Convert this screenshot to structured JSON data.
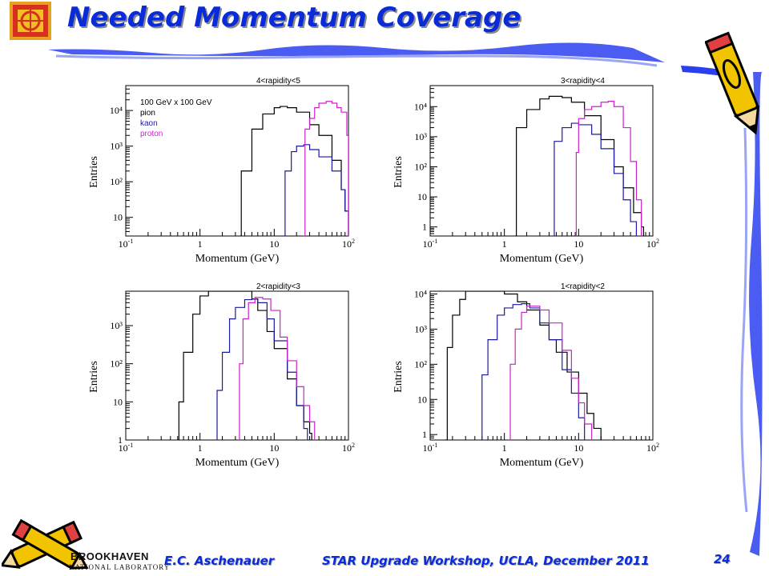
{
  "slide": {
    "title": "Needed Momentum Coverage",
    "footer_author": "E.C. Aschenauer",
    "footer_event": "STAR Upgrade Workshop, UCLA, December 2011",
    "page_number": "24",
    "lab_name": "BROOKHAVEN",
    "lab_subtitle": "NATIONAL LABORATORY"
  },
  "colors": {
    "title": "#0a2bd8",
    "pion": "#000000",
    "kaon": "#1a1aa0",
    "proton": "#cc22cc",
    "frame": "#000000"
  },
  "legend": {
    "header": "100 GeV x 100 GeV",
    "entries": [
      "pion",
      "kaon",
      "proton"
    ]
  },
  "chart_data": [
    {
      "type": "line",
      "title": "4<rapidity<5",
      "xlabel": "Momentum (GeV)",
      "ylabel": "Entries",
      "xscale": "log",
      "yscale": "log",
      "xlim": [
        0.1,
        100
      ],
      "ylim": [
        3,
        50000
      ],
      "ytick_labels": [
        "10",
        "10²",
        "10³",
        "10⁴"
      ],
      "legend_in_plot": true,
      "series": [
        {
          "name": "pion",
          "x": [
            3.5,
            3.6,
            5,
            7,
            10,
            12,
            15,
            20,
            30,
            40,
            60,
            80,
            90,
            100
          ],
          "y": [
            3,
            200,
            3000,
            8000,
            12000,
            13000,
            12000,
            9000,
            4000,
            2000,
            400,
            60,
            15,
            3
          ]
        },
        {
          "name": "kaon",
          "x": [
            13,
            14,
            17,
            20,
            25,
            30,
            40,
            60,
            80,
            90,
            100
          ],
          "y": [
            3,
            200,
            700,
            1000,
            1100,
            800,
            500,
            200,
            60,
            15,
            3
          ]
        },
        {
          "name": "proton",
          "x": [
            25,
            26,
            30,
            35,
            40,
            50,
            60,
            70,
            80,
            95,
            100
          ],
          "y": [
            3,
            3000,
            6000,
            12000,
            16000,
            18000,
            16000,
            12000,
            9000,
            2000,
            1000
          ]
        }
      ]
    },
    {
      "type": "line",
      "title": "3<rapidity<4",
      "xlabel": "Momentum (GeV)",
      "ylabel": "Entries",
      "xscale": "log",
      "yscale": "log",
      "xlim": [
        0.1,
        100
      ],
      "ylim": [
        0.5,
        50000
      ],
      "ytick_labels": [
        "1",
        "10",
        "10²",
        "10³",
        "10⁴"
      ],
      "legend_in_plot": false,
      "series": [
        {
          "name": "pion",
          "x": [
            1.4,
            1.45,
            2,
            3,
            4,
            5,
            6,
            8,
            12,
            20,
            30,
            40,
            55,
            70,
            75
          ],
          "y": [
            0.5,
            2000,
            8000,
            18000,
            22000,
            22000,
            20000,
            14000,
            5000,
            800,
            100,
            20,
            3,
            1,
            0.5
          ]
        },
        {
          "name": "kaon",
          "x": [
            4.5,
            4.7,
            6,
            8,
            10,
            15,
            20,
            30,
            40,
            50,
            60
          ],
          "y": [
            0.5,
            700,
            2000,
            2800,
            2500,
            1200,
            400,
            60,
            8,
            1.5,
            0.5
          ]
        },
        {
          "name": "proton",
          "x": [
            9,
            9.3,
            10,
            12,
            15,
            20,
            25,
            30,
            40,
            50,
            60,
            70
          ],
          "y": [
            0.5,
            300,
            4000,
            8000,
            10000,
            14000,
            15000,
            10000,
            2000,
            150,
            8,
            0.5
          ]
        }
      ]
    },
    {
      "type": "line",
      "title": "2<rapidity<3",
      "xlabel": "Momentum (GeV)",
      "ylabel": "Entries",
      "xscale": "log",
      "yscale": "log",
      "xlim": [
        0.1,
        100
      ],
      "ylim": [
        1,
        8000
      ],
      "ytick_labels": [
        "1",
        "10",
        "10²",
        "10³"
      ],
      "legend_in_plot": false,
      "series": [
        {
          "name": "pion",
          "x": [
            0.5,
            0.52,
            0.6,
            0.8,
            1,
            1.3,
            1.6,
            2,
            3,
            4,
            5,
            6,
            8,
            10,
            15,
            20,
            25,
            30,
            32
          ],
          "y": [
            1,
            10,
            200,
            2000,
            6000,
            8000,
            8000,
            8000,
            8000,
            8000,
            5000,
            2500,
            700,
            250,
            40,
            8,
            3,
            1.5,
            1
          ]
        },
        {
          "name": "kaon",
          "x": [
            1.6,
            1.7,
            2,
            2.5,
            3,
            4,
            5,
            6,
            8,
            10,
            15,
            20,
            25,
            28
          ],
          "y": [
            1,
            20,
            200,
            1500,
            3000,
            4800,
            5000,
            4000,
            1500,
            400,
            60,
            8,
            2,
            1
          ]
        },
        {
          "name": "proton",
          "x": [
            3.3,
            3.4,
            3.8,
            4.5,
            5.5,
            7,
            9,
            12,
            15,
            20,
            25,
            30,
            35
          ],
          "y": [
            1,
            100,
            1500,
            4000,
            5500,
            5000,
            2500,
            500,
            120,
            25,
            8,
            3,
            1
          ]
        }
      ]
    },
    {
      "type": "line",
      "title": "1<rapidity<2",
      "xlabel": "Momentum (GeV)",
      "ylabel": "Entries",
      "xscale": "log",
      "yscale": "log",
      "xlim": [
        0.1,
        100
      ],
      "ylim": [
        0.7,
        12000
      ],
      "ytick_labels": [
        "1",
        "10",
        "10²",
        "10³",
        "10⁴"
      ],
      "legend_in_plot": false,
      "series": [
        {
          "name": "pion",
          "x": [
            0.16,
            0.17,
            0.2,
            0.25,
            0.3,
            0.4,
            0.5,
            0.7,
            1,
            1.5,
            2,
            3,
            4,
            5,
            7,
            10,
            13,
            16,
            20
          ],
          "y": [
            0.7,
            300,
            2500,
            7000,
            12000,
            12000,
            12000,
            12000,
            10000,
            6000,
            3500,
            1300,
            500,
            220,
            60,
            15,
            4,
            1.5,
            0.7
          ]
        },
        {
          "name": "kaon",
          "x": [
            0.48,
            0.5,
            0.6,
            0.8,
            1,
            1.3,
            1.7,
            2.2,
            3,
            4,
            6,
            8,
            10,
            12
          ],
          "y": [
            0.7,
            50,
            500,
            2500,
            4000,
            5000,
            5300,
            4000,
            1500,
            500,
            70,
            15,
            3,
            0.7
          ]
        },
        {
          "name": "proton",
          "x": [
            1.15,
            1.2,
            1.4,
            1.7,
            2,
            2.5,
            3,
            4,
            6,
            8,
            10,
            12,
            15
          ],
          "y": [
            0.7,
            100,
            1000,
            3000,
            4500,
            4500,
            3500,
            1500,
            250,
            40,
            8,
            2,
            0.7
          ]
        }
      ]
    }
  ]
}
